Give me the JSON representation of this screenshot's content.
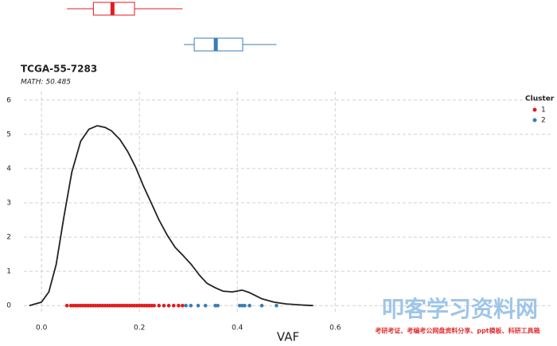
{
  "chart_data": {
    "type": "density",
    "title": "TCGA-55-7283",
    "subtitle": "MATH: 50.485",
    "x_label": "VAF",
    "legend_title": "Cluster",
    "xlim": [
      -0.036,
      1.04
    ],
    "ylim": [
      -0.25,
      6.25
    ],
    "xticks": [
      {
        "value": 0,
        "label": "0.0"
      },
      {
        "value": 0.2,
        "label": "0.2"
      },
      {
        "value": 0.4,
        "label": "0.4"
      },
      {
        "value": 0.6,
        "label": "0.6"
      }
    ],
    "yticks": [
      0,
      1,
      2,
      3,
      4,
      5,
      6
    ],
    "grid": true,
    "density": {
      "color": "#222222",
      "x": [
        -0.025,
        0.0,
        0.015,
        0.03,
        0.046,
        0.062,
        0.08,
        0.097,
        0.114,
        0.13,
        0.143,
        0.16,
        0.176,
        0.192,
        0.208,
        0.224,
        0.24,
        0.257,
        0.273,
        0.29,
        0.306,
        0.322,
        0.338,
        0.355,
        0.371,
        0.39,
        0.41,
        0.425,
        0.45,
        0.475,
        0.5,
        0.53,
        0.555
      ],
      "values": [
        0.0,
        0.1,
        0.4,
        1.2,
        2.6,
        3.9,
        4.8,
        5.15,
        5.25,
        5.2,
        5.1,
        4.85,
        4.5,
        4.05,
        3.5,
        3.0,
        2.5,
        2.05,
        1.7,
        1.45,
        1.2,
        0.9,
        0.65,
        0.52,
        0.42,
        0.4,
        0.45,
        0.38,
        0.2,
        0.1,
        0.05,
        0.02,
        0.0
      ]
    },
    "series": [
      {
        "name": "1",
        "color": "#e41a1c",
        "x": [
          0.052,
          0.06,
          0.065,
          0.07,
          0.075,
          0.08,
          0.085,
          0.09,
          0.095,
          0.1,
          0.105,
          0.11,
          0.115,
          0.12,
          0.125,
          0.13,
          0.135,
          0.14,
          0.145,
          0.15,
          0.155,
          0.16,
          0.165,
          0.17,
          0.175,
          0.18,
          0.185,
          0.19,
          0.195,
          0.2,
          0.205,
          0.21,
          0.215,
          0.22,
          0.225,
          0.23,
          0.24,
          0.25,
          0.26,
          0.27,
          0.28,
          0.288
        ],
        "values": [
          0,
          0,
          0,
          0,
          0,
          0,
          0,
          0,
          0,
          0,
          0,
          0,
          0,
          0,
          0,
          0,
          0,
          0,
          0,
          0,
          0,
          0,
          0,
          0,
          0,
          0,
          0,
          0,
          0,
          0,
          0,
          0,
          0,
          0,
          0,
          0,
          0,
          0,
          0,
          0,
          0,
          0
        ]
      },
      {
        "name": "2",
        "color": "#377eb8",
        "x": [
          0.295,
          0.305,
          0.32,
          0.335,
          0.355,
          0.36,
          0.405,
          0.41,
          0.415,
          0.425,
          0.45,
          0.48
        ],
        "values": [
          0,
          0,
          0,
          0,
          0,
          0,
          0,
          0,
          0,
          0,
          0,
          0
        ]
      }
    ],
    "boxplots": [
      {
        "color": "#e41a1c",
        "min": 0.052,
        "q1": 0.106,
        "median": 0.145,
        "q3": 0.19,
        "max": 0.288
      },
      {
        "color": "#377eb8",
        "min": 0.291,
        "q1": 0.312,
        "median": 0.356,
        "q3": 0.411,
        "max": 0.48
      }
    ]
  },
  "watermark": {
    "title": "叩客学习资料网",
    "subtitle": "考研考证、考编考公网盘资料分享、ppt模板、科研工具箱"
  }
}
